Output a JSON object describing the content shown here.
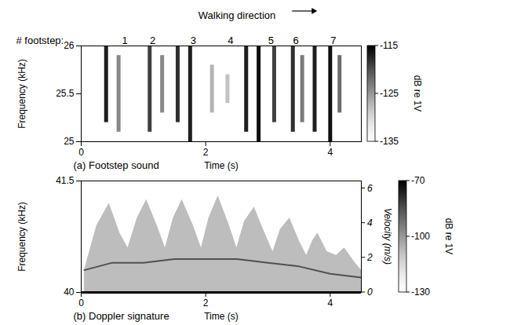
{
  "chart_data": [
    {
      "type": "heatmap",
      "title": "(a) Footstep sound",
      "header": "Walking direction",
      "footstep_label": "# footstep:",
      "footsteps": [
        1,
        2,
        3,
        4,
        5,
        6,
        7
      ],
      "footstep_x": [
        0.7,
        1.15,
        1.8,
        2.4,
        3.05,
        3.45,
        4.05
      ],
      "x_label": "Time (s)",
      "y_label": "Frequency (kHz)",
      "xlim": [
        0,
        4.5
      ],
      "xticks": [
        0,
        2,
        4
      ],
      "ylim": [
        25,
        26
      ],
      "yticks": [
        25,
        25.5,
        26
      ],
      "stripes": {
        "time": [
          0.4,
          0.6,
          1.1,
          1.3,
          1.55,
          1.75,
          2.1,
          2.35,
          2.65,
          2.85,
          3.1,
          3.4,
          3.55,
          3.75,
          4.0,
          4.15
        ],
        "f_low": [
          25.2,
          25.1,
          25.1,
          25.3,
          25.2,
          25.0,
          25.3,
          25.4,
          25.1,
          25.0,
          25.2,
          25.1,
          25.2,
          25.1,
          25.0,
          25.3
        ],
        "f_high": [
          26.0,
          25.9,
          26.0,
          25.9,
          26.0,
          26.0,
          25.8,
          25.7,
          26.0,
          26.0,
          26.0,
          26.0,
          25.9,
          26.0,
          26.0,
          25.9
        ],
        "level": [
          -117,
          -124,
          -119,
          -124,
          -118,
          -117,
          -127,
          -128,
          -117,
          -116,
          -119,
          -118,
          -123,
          -117,
          -116,
          -122
        ]
      },
      "colorbar": {
        "label": "dB re 1V",
        "range": [
          -135,
          -115
        ],
        "ticks": [
          -115,
          -125,
          -135
        ]
      }
    },
    {
      "type": "area",
      "title": "(b) Doppler signature",
      "x_label": "Time (s)",
      "y_label": "Frequency (kHz)",
      "y2_label": "Velocity (m/s)",
      "xlim": [
        0,
        4.5
      ],
      "xticks": [
        0,
        2,
        4
      ],
      "ylim": [
        40,
        41.5
      ],
      "yticks": [
        40,
        41.5
      ],
      "y2lim": [
        0,
        6.43
      ],
      "y2ticks": [
        0,
        2,
        4,
        6
      ],
      "x": [
        0.05,
        0.25,
        0.45,
        0.62,
        0.75,
        0.9,
        1.05,
        1.22,
        1.35,
        1.48,
        1.62,
        1.8,
        1.93,
        2.05,
        2.2,
        2.38,
        2.5,
        2.62,
        2.78,
        2.95,
        3.08,
        3.2,
        3.35,
        3.5,
        3.62,
        3.72,
        3.8,
        3.95,
        4.1,
        4.23,
        4.4,
        4.5
      ],
      "values": [
        40.3,
        40.9,
        41.2,
        40.8,
        40.6,
        41.0,
        41.25,
        40.9,
        40.6,
        41.0,
        41.25,
        40.9,
        40.6,
        41.0,
        41.3,
        40.9,
        40.6,
        40.95,
        41.15,
        40.8,
        40.55,
        40.85,
        41.0,
        40.7,
        40.5,
        40.7,
        40.8,
        40.55,
        40.5,
        40.6,
        40.4,
        40.3
      ],
      "level": -108,
      "torso": {
        "x": [
          0.05,
          0.5,
          1.0,
          1.5,
          2.0,
          2.5,
          3.0,
          3.5,
          4.0,
          4.5
        ],
        "values": [
          40.3,
          40.4,
          40.4,
          40.45,
          40.45,
          40.45,
          40.4,
          40.35,
          40.25,
          40.2
        ],
        "level": -85
      },
      "carrier": {
        "value": 40,
        "level": -70
      },
      "colorbar": {
        "label": "dB re 1V",
        "range": [
          -130,
          -70
        ],
        "ticks": [
          -70,
          -100,
          -130
        ]
      }
    }
  ]
}
